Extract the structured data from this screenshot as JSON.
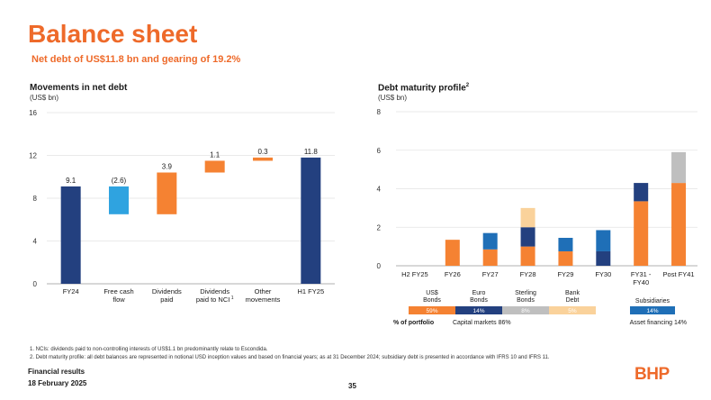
{
  "header": {
    "title": "Balance sheet",
    "subtitle": "Net debt of US$11.8 bn and gearing of 19.2%"
  },
  "colors": {
    "accent": "#ee6a2a",
    "navy": "#23407f",
    "lightblue": "#2fa3e0",
    "orange": "#f58232",
    "blue": "#1f6fb7",
    "grey": "#bfbfbf",
    "peach": "#fad29b",
    "grid": "#e3e3e3"
  },
  "chart_data": [
    {
      "type": "bar",
      "subtype": "waterfall",
      "title": "Movements in net debt",
      "ylabel": "(US$ bn)",
      "ylim": [
        0,
        16
      ],
      "yticks": [
        0,
        4,
        8,
        12,
        16
      ],
      "categories": [
        "FY24",
        "Free cash flow",
        "Dividends paid",
        "Dividends paid to NCI",
        "Other movements",
        "H1 FY25"
      ],
      "category_labels": [
        [
          "FY24"
        ],
        [
          "Free cash",
          "flow"
        ],
        [
          "Dividends",
          "paid"
        ],
        [
          "Dividends",
          "paid to NCI"
        ],
        [
          "Other",
          "movements"
        ],
        [
          "H1 FY25"
        ]
      ],
      "nci_footnote_marker": "1",
      "values": [
        9.1,
        -2.6,
        3.9,
        1.1,
        0.3,
        11.8
      ],
      "value_labels": [
        "9.1",
        "(2.6)",
        "3.9",
        "1.1",
        "0.3",
        "11.8"
      ],
      "bar_kinds": [
        "total",
        "decrease",
        "increase",
        "increase",
        "increase",
        "total"
      ]
    },
    {
      "type": "bar",
      "subtype": "stacked",
      "title": "Debt maturity profile",
      "title_superscript": "2",
      "ylabel": "(US$ bn)",
      "ylim": [
        0,
        8
      ],
      "yticks": [
        0,
        2,
        4,
        6,
        8
      ],
      "categories": [
        "H2 FY25",
        "FY26",
        "FY27",
        "FY28",
        "FY29",
        "FY30",
        "FY31 - FY40",
        "Post FY41"
      ],
      "category_labels": [
        [
          "H2 FY25"
        ],
        [
          "FY26"
        ],
        [
          "FY27"
        ],
        [
          "FY28"
        ],
        [
          "FY29"
        ],
        [
          "FY30"
        ],
        [
          "FY31 -",
          "FY40"
        ],
        [
          "Post FY41"
        ]
      ],
      "series": [
        {
          "name": "US$ Bonds",
          "color": "orange",
          "values": [
            0,
            1.35,
            0.85,
            1.0,
            0.75,
            0,
            3.35,
            4.3
          ]
        },
        {
          "name": "Euro Bonds",
          "color": "navy",
          "values": [
            0,
            0,
            0,
            1.0,
            0,
            0.75,
            0.95,
            0
          ]
        },
        {
          "name": "Sterling Bonds",
          "color": "grey",
          "values": [
            0,
            0,
            0,
            0,
            0,
            0,
            0,
            1.6
          ]
        },
        {
          "name": "Bank Debt",
          "color": "peach",
          "values": [
            0,
            0,
            0,
            1.0,
            0,
            0,
            0,
            0
          ]
        },
        {
          "name": "Subsidiaries",
          "color": "blue",
          "values": [
            0,
            0,
            0.85,
            0,
            0.7,
            1.1,
            0,
            0
          ]
        }
      ],
      "legend": [
        {
          "label": [
            "US$",
            "Bonds"
          ],
          "pct": "59%",
          "color": "orange",
          "pct_color": "#ffffff"
        },
        {
          "label": [
            "Euro",
            "Bonds"
          ],
          "pct": "14%",
          "color": "navy",
          "pct_color": "#ffffff"
        },
        {
          "label": [
            "Sterling",
            "Bonds"
          ],
          "pct": "8%",
          "color": "grey",
          "pct_color": "#ffffff"
        },
        {
          "label": [
            "Bank",
            "Debt"
          ],
          "pct": "5%",
          "color": "peach",
          "pct_color": "#ffffff"
        },
        {
          "label": [
            "Subsidiaries"
          ],
          "pct": "14%",
          "color": "blue",
          "pct_color": "#ffffff"
        }
      ],
      "portfolio_label": "% of portfolio",
      "capital_markets_label": "Capital markets 86%",
      "asset_financing_label": "Asset financing 14%"
    }
  ],
  "footnotes": [
    "1.  NCIs: dividends paid to non-controlling interests of US$1.1 bn predominantly relate to Escondida.",
    "2.  Debt maturity profile: all debt balances are represented in notional USD inception values and based on financial years; as at 31 December 2024; subsidiary debt is presented in accordance with IFRS 10 and IFRS 11."
  ],
  "footer": {
    "line1": "Financial results",
    "line2": "18 February 2025",
    "page": "35",
    "logo": "BHP"
  }
}
